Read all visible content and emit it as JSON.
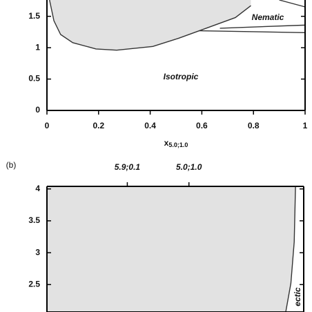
{
  "chart_data": [
    {
      "type": "phase",
      "panel": null,
      "xlim": [
        0,
        1
      ],
      "xticks": [
        0,
        0.2,
        0.4,
        0.6,
        0.8,
        1
      ],
      "ylim": [
        0,
        1.76
      ],
      "yticks": [
        0,
        0.5,
        1,
        1.5
      ],
      "xlabel": "x",
      "xlabel_sub": "5.0;1.0",
      "annotations": [
        "Nematic",
        "Isotropic"
      ],
      "fill": "#e2e2e2",
      "fill_side": "top",
      "series": [
        {
          "color": "#333333",
          "x": [
            0.01,
            0.027,
            0.053,
            0.1,
            0.19,
            0.27,
            0.41,
            0.51,
            0.59,
            0.73,
            0.79
          ],
          "values": [
            1.76,
            1.43,
            1.21,
            1.08,
            0.98,
            0.96,
            1.02,
            1.15,
            1.27,
            1.48,
            1.67
          ]
        },
        {
          "color": "#333333",
          "x": [
            0.59,
            1
          ],
          "values": [
            1.27,
            1.24
          ]
        },
        {
          "color": "#333333",
          "x": [
            0.67,
            1
          ],
          "values": [
            1.31,
            1.36
          ]
        },
        {
          "color": "#333333",
          "x": [
            0.9,
            1
          ],
          "values": [
            1.76,
            1.65
          ]
        }
      ]
    },
    {
      "type": "phase",
      "panel": "(b)",
      "xlim": [
        0,
        1
      ],
      "x2ticks": [
        {
          "value": 0.313,
          "label": "5.9;0.1"
        },
        {
          "value": 0.553,
          "label": "5.0;1.0"
        }
      ],
      "ylim": [
        2.07,
        4.04
      ],
      "yticks": [
        2.5,
        3,
        3.5,
        4
      ],
      "annotations": [
        "ectic"
      ],
      "fill": "#e2e2e2",
      "fill_side": "left",
      "series": [
        {
          "color": "#333333",
          "x": [
            0.968,
            0.963,
            0.95,
            0.93
          ],
          "values": [
            4.04,
            3.17,
            2.52,
            2.07
          ]
        }
      ]
    }
  ]
}
